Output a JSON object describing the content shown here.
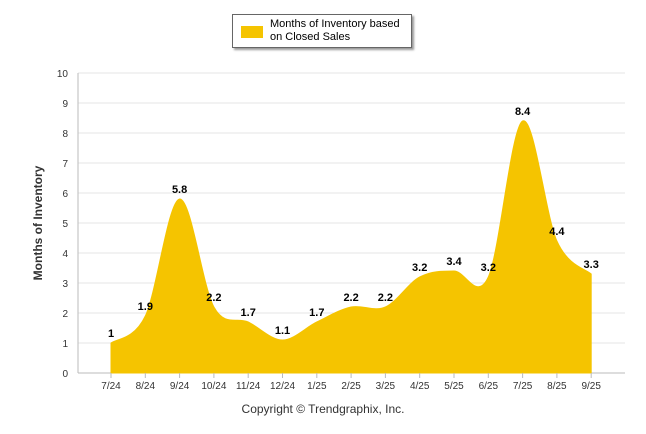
{
  "chart_data": {
    "type": "area",
    "categories": [
      "7/24",
      "8/24",
      "9/24",
      "10/24",
      "11/24",
      "12/24",
      "1/25",
      "2/25",
      "3/25",
      "4/25",
      "5/25",
      "6/25",
      "7/25",
      "8/25",
      "9/25"
    ],
    "series": [
      {
        "name": "Months of Inventory based on Closed Sales",
        "values": [
          1,
          1.9,
          5.8,
          2.2,
          1.7,
          1.1,
          1.7,
          2.2,
          2.2,
          3.2,
          3.4,
          3.2,
          8.4,
          4.4,
          3.3
        ]
      }
    ],
    "title": "",
    "xlabel": "",
    "ylabel": "Months of Inventory",
    "ylim": [
      0,
      10
    ],
    "yticks": [
      "0",
      "1",
      "2",
      "3",
      "4",
      "5",
      "6",
      "7",
      "8",
      "9",
      "10"
    ],
    "grid": true,
    "legend": "top-center",
    "color": "#F5C400"
  },
  "footer": {
    "copyright": "Copyright © Trendgraphix, Inc."
  }
}
